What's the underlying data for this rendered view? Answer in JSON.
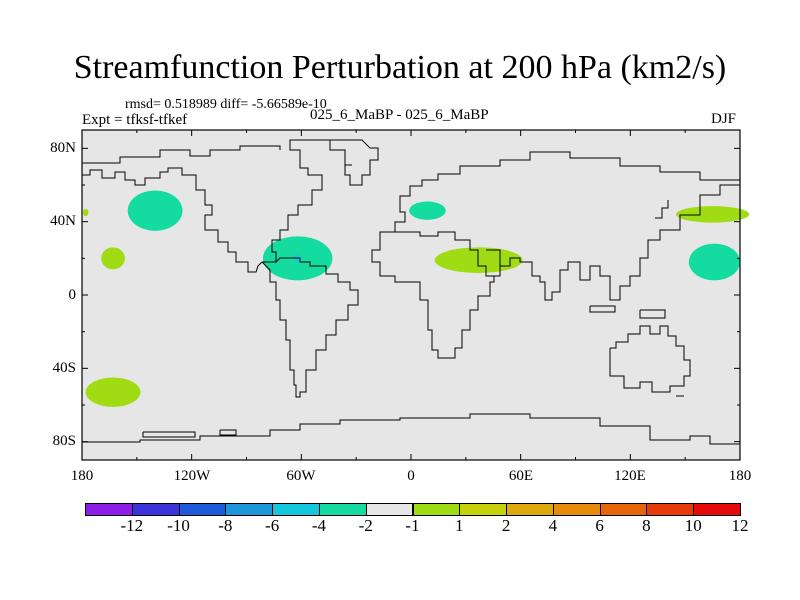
{
  "title": "Streamfunction Perturbation at 200 hPa (km2/s)",
  "stats": "rmsd= 0.518989 diff= -5.66589e-10",
  "experiment": "Expt = tfksf-tfkef",
  "subtitle": "025_6_MaBP - 025_6_MaBP",
  "season": "DJF",
  "lat_ticks": [
    "80N",
    "40N",
    "0",
    "40S",
    "80S"
  ],
  "lon_ticks": [
    "180",
    "120W",
    "60W",
    "0",
    "60E",
    "120E",
    "180"
  ],
  "colorbar": {
    "labels": [
      "-12",
      "-10",
      "-8",
      "-6",
      "-4",
      "-2",
      "-1",
      "1",
      "2",
      "4",
      "6",
      "8",
      "10",
      "12"
    ],
    "colors": [
      "#8c1ee6",
      "#3c32dc",
      "#1e5adc",
      "#1e96dc",
      "#14c8dc",
      "#14dca0",
      "#e6e6e6",
      "#a0dc14",
      "#c8d20a",
      "#dcaa0a",
      "#e68c0a",
      "#e6640a",
      "#e63c0a",
      "#e60a0a"
    ]
  },
  "map_background": "#e6e6e6",
  "features": [
    {
      "name": "anomaly-north-pacific",
      "lon": -140,
      "lat": 46,
      "rx": 15,
      "ry": 11,
      "color": "#14dca0"
    },
    {
      "name": "anomaly-central-america",
      "lon": -62,
      "lat": 20,
      "rx": 19,
      "ry": 12,
      "color": "#14dca0"
    },
    {
      "name": "anomaly-core-central-america",
      "lon": -62,
      "lat": 20,
      "rx": 2,
      "ry": 2,
      "color": "#14c8dc"
    },
    {
      "name": "anomaly-europe",
      "lon": 9,
      "lat": 46,
      "rx": 10,
      "ry": 5,
      "color": "#14dca0"
    },
    {
      "name": "anomaly-africa",
      "lon": 37,
      "lat": 19,
      "rx": 24,
      "ry": 7,
      "color": "#a0dc14"
    },
    {
      "name": "anomaly-east-pacific",
      "lon": -163,
      "lat": 20,
      "rx": 6.5,
      "ry": 6,
      "color": "#a0dc14"
    },
    {
      "name": "anomaly-northwest-pacific",
      "lon": 165,
      "lat": 44,
      "rx": 20,
      "ry": 4.5,
      "color": "#a0dc14"
    },
    {
      "name": "anomaly-west-pacific",
      "lon": 166,
      "lat": 18,
      "rx": 14,
      "ry": 10,
      "color": "#14dca0"
    },
    {
      "name": "anomaly-south-pacific",
      "lon": -163,
      "lat": -53,
      "rx": 15,
      "ry": 8,
      "color": "#a0dc14"
    },
    {
      "name": "anomaly-dateline-dot",
      "lon": -178,
      "lat": 45,
      "rx": 1.5,
      "ry": 2,
      "color": "#a0dc14"
    }
  ]
}
